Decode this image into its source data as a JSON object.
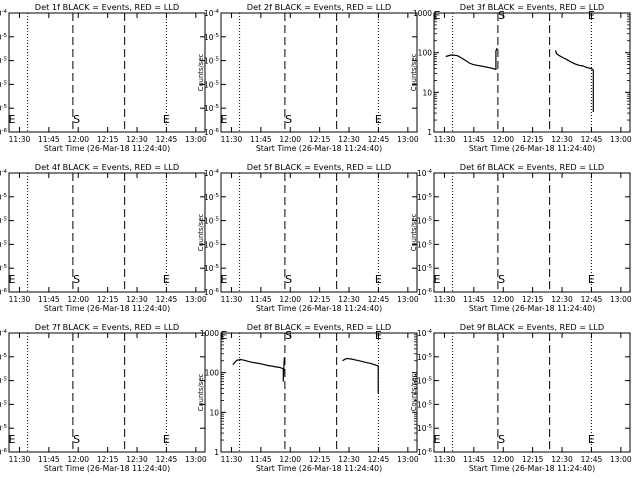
{
  "page": {
    "panel_count": 9
  },
  "common": {
    "xlabel": "Start Time (26-Mar-18 11:24:40)",
    "ylabel": "Counts/sec",
    "x_ticks": [
      "11:30",
      "11:45",
      "12:00",
      "12:15",
      "12:30",
      "12:45",
      "13:00"
    ],
    "x_tick_minutes": [
      5.33,
      20.33,
      35.33,
      50.33,
      65.33,
      80.33,
      95.33
    ],
    "xlim_minutes": [
      0,
      100
    ],
    "dotted_lines_minutes": [
      9.5,
      80.3
    ],
    "dashed_lines_minutes": [
      32.6,
      59.0
    ],
    "markers": [
      {
        "label": "E",
        "x_minutes": 1.5
      },
      {
        "label": "S",
        "x_minutes": 34.5
      },
      {
        "label": "E",
        "x_minutes": 80.3
      }
    ],
    "colors": {
      "axes": "#000000",
      "events": "#000000",
      "lld": "#ff0000"
    }
  },
  "chart_data": [
    {
      "type": "line",
      "title": "Det 1f BLACK = Events, RED = LLD",
      "y_scale": "log",
      "ylim": [
        1e-06,
        0.0001
      ],
      "ytick_labels": [
        "10^-6",
        "10^-5",
        "10^-5",
        "10^-5",
        "10^-5",
        "10^-4"
      ],
      "series": []
    },
    {
      "type": "line",
      "title": "Det 2f BLACK = Events, RED = LLD",
      "y_scale": "log",
      "ylim": [
        1e-06,
        0.0001
      ],
      "ytick_labels": [
        "10^-6",
        "10^-5",
        "10^-5",
        "10^-5",
        "10^-5",
        "10^-4"
      ],
      "series": []
    },
    {
      "type": "line",
      "title": "Det 3f BLACK = Events, RED = LLD",
      "y_scale": "log",
      "ylim": [
        1,
        1000
      ],
      "ytick_labels": [
        "1",
        "10",
        "100",
        "1000"
      ],
      "series": [
        {
          "x": [
            6,
            9,
            12,
            14,
            16,
            18,
            20,
            22,
            24,
            26,
            28,
            30,
            31.6,
            31.6,
            32.2
          ],
          "y": [
            80,
            88,
            84,
            74,
            64,
            55,
            50,
            48,
            46,
            44,
            42,
            40,
            38,
            110,
            130
          ]
        },
        {
          "x": [
            62,
            62.5,
            64,
            66,
            68,
            70,
            72,
            74,
            76,
            78,
            80,
            81,
            81.3,
            81.3
          ],
          "y": [
            115,
            95,
            84,
            74,
            66,
            58,
            52,
            48,
            46,
            42,
            40,
            38,
            36,
            3.2
          ]
        }
      ]
    },
    {
      "type": "line",
      "title": "Det 4f BLACK = Events, RED = LLD",
      "y_scale": "log",
      "ylim": [
        1e-06,
        0.0001
      ],
      "ytick_labels": [
        "10^-6",
        "10^-5",
        "10^-5",
        "10^-5",
        "10^-5",
        "10^-4"
      ],
      "series": []
    },
    {
      "type": "line",
      "title": "Det 5f BLACK = Events, RED = LLD",
      "y_scale": "log",
      "ylim": [
        1e-06,
        0.0001
      ],
      "ytick_labels": [
        "10^-6",
        "10^-5",
        "10^-5",
        "10^-5",
        "10^-5",
        "10^-4"
      ],
      "series": []
    },
    {
      "type": "line",
      "title": "Det 6f BLACK = Events, RED = LLD",
      "y_scale": "log",
      "ylim": [
        1e-06,
        0.0001
      ],
      "ytick_labels": [
        "10^-6",
        "10^-5",
        "10^-5",
        "10^-5",
        "10^-5",
        "10^-4"
      ],
      "series": []
    },
    {
      "type": "line",
      "title": "Det 7f BLACK = Events, RED = LLD",
      "y_scale": "log",
      "ylim": [
        1e-06,
        0.0001
      ],
      "ytick_labels": [
        "10^-6",
        "10^-5",
        "10^-5",
        "10^-5",
        "10^-5",
        "10^-4"
      ],
      "series": []
    },
    {
      "type": "line",
      "title": "Det 8f BLACK = Events, RED = LLD",
      "y_scale": "log",
      "ylim": [
        1,
        1000
      ],
      "ytick_labels": [
        "1",
        "10",
        "100",
        "1000"
      ],
      "series": [
        {
          "x": [
            6,
            8,
            10,
            12,
            14,
            16,
            18,
            20,
            22,
            24,
            26,
            28,
            30,
            31.8,
            31.8,
            32.3
          ],
          "y": [
            160,
            205,
            215,
            205,
            192,
            182,
            175,
            168,
            160,
            152,
            146,
            140,
            135,
            125,
            60,
            240
          ]
        },
        {
          "x": [
            62,
            64,
            66,
            68,
            70,
            72,
            74,
            76,
            78,
            79.5,
            80.2,
            80.2
          ],
          "y": [
            200,
            228,
            222,
            212,
            202,
            192,
            182,
            172,
            162,
            152,
            148,
            30
          ]
        }
      ]
    },
    {
      "type": "line",
      "title": "Det 9f BLACK = Events, RED = LLD",
      "y_scale": "log",
      "ylim": [
        1e-06,
        0.0001
      ],
      "ytick_labels": [
        "10^-6",
        "10^-5",
        "10^-5",
        "10^-5",
        "10^-5",
        "10^-4"
      ],
      "series": []
    }
  ]
}
